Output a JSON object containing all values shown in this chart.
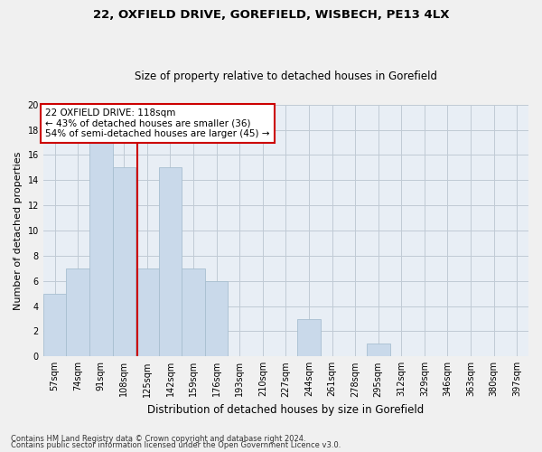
{
  "title1": "22, OXFIELD DRIVE, GOREFIELD, WISBECH, PE13 4LX",
  "title2": "Size of property relative to detached houses in Gorefield",
  "xlabel": "Distribution of detached houses by size in Gorefield",
  "ylabel": "Number of detached properties",
  "categories": [
    "57sqm",
    "74sqm",
    "91sqm",
    "108sqm",
    "125sqm",
    "142sqm",
    "159sqm",
    "176sqm",
    "193sqm",
    "210sqm",
    "227sqm",
    "244sqm",
    "261sqm",
    "278sqm",
    "295sqm",
    "312sqm",
    "329sqm",
    "346sqm",
    "363sqm",
    "380sqm",
    "397sqm"
  ],
  "values": [
    5,
    7,
    17,
    15,
    7,
    15,
    7,
    6,
    0,
    0,
    0,
    3,
    0,
    0,
    1,
    0,
    0,
    0,
    0,
    0,
    0
  ],
  "bar_color": "#c9d9ea",
  "bar_edge_color": "#a8bfd0",
  "property_size": 118,
  "property_label": "22 OXFIELD DRIVE: 118sqm",
  "annotation_line1": "← 43% of detached houses are smaller (36)",
  "annotation_line2": "54% of semi-detached houses are larger (45) →",
  "vline_color": "#cc0000",
  "ylim": [
    0,
    20
  ],
  "yticks": [
    0,
    2,
    4,
    6,
    8,
    10,
    12,
    14,
    16,
    18,
    20
  ],
  "annotation_box_color": "#cc0000",
  "grid_color": "#c0cad5",
  "bg_color": "#e8eef5",
  "fig_bg_color": "#f0f0f0",
  "footnote1": "Contains HM Land Registry data © Crown copyright and database right 2024.",
  "footnote2": "Contains public sector information licensed under the Open Government Licence v3.0.",
  "title1_fontsize": 9.5,
  "title2_fontsize": 8.5,
  "ylabel_fontsize": 8,
  "xlabel_fontsize": 8.5,
  "annot_fontsize": 7.5,
  "tick_fontsize": 7,
  "footnote_fontsize": 6
}
